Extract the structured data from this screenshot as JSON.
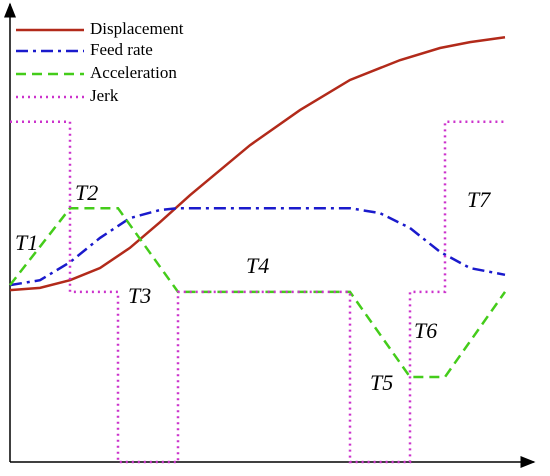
{
  "chart_data": {
    "type": "line",
    "xlim": [
      0,
      104
    ],
    "ylim": [
      0,
      101
    ],
    "series": [
      {
        "name": "Displacement",
        "color": "#b22a1a",
        "dash": "solid",
        "x": [
          0,
          6,
          12,
          18,
          24,
          30,
          36,
          48,
          58,
          68,
          78,
          86,
          92,
          99
        ],
        "values": [
          38.2,
          38.7,
          40.4,
          43.1,
          47.6,
          53.3,
          59.3,
          70.4,
          78.2,
          84.9,
          89.3,
          92.0,
          93.3,
          94.4
        ]
      },
      {
        "name": "Feed rate",
        "color": "#1a1acc",
        "dash": "dashdot",
        "x": [
          0,
          6,
          12,
          18,
          24,
          30,
          33.6,
          68,
          74,
          80,
          86,
          92,
          99
        ],
        "values": [
          39.3,
          40.4,
          44.4,
          49.8,
          54.2,
          56.0,
          56.4,
          56.4,
          55.3,
          52.0,
          46.7,
          43.1,
          41.6
        ]
      },
      {
        "name": "Acceleration",
        "color": "#44cc1a",
        "dash": "dashed",
        "x": [
          0,
          12,
          21.6,
          33.6,
          68,
          80,
          87,
          99
        ],
        "values": [
          39.3,
          56.4,
          56.4,
          37.8,
          37.8,
          18.9,
          18.9,
          37.8
        ]
      },
      {
        "name": "Jerk",
        "color": "#cc33cc",
        "dash": "dotted",
        "x": [
          0,
          12,
          12,
          21.6,
          21.6,
          33.6,
          33.6,
          68,
          68,
          80,
          80,
          87,
          87,
          99
        ],
        "values": [
          75.6,
          75.6,
          37.8,
          37.8,
          0,
          0,
          37.8,
          37.8,
          0,
          0,
          37.8,
          37.8,
          75.6,
          75.6
        ]
      }
    ],
    "annotations": [
      "T1",
      "T2",
      "T3",
      "T4",
      "T5",
      "T6",
      "T7"
    ]
  }
}
